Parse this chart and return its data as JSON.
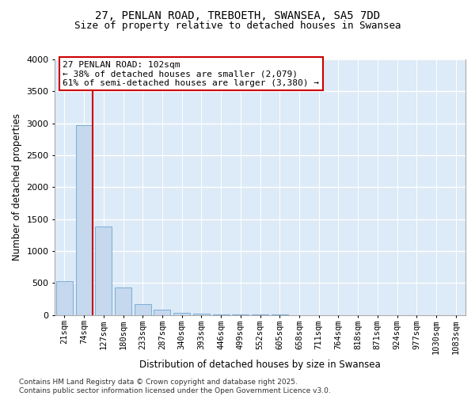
{
  "title_line1": "27, PENLAN ROAD, TREBOETH, SWANSEA, SA5 7DD",
  "title_line2": "Size of property relative to detached houses in Swansea",
  "xlabel": "Distribution of detached houses by size in Swansea",
  "ylabel": "Number of detached properties",
  "categories": [
    "21sqm",
    "74sqm",
    "127sqm",
    "180sqm",
    "233sqm",
    "287sqm",
    "340sqm",
    "393sqm",
    "446sqm",
    "499sqm",
    "552sqm",
    "605sqm",
    "658sqm",
    "711sqm",
    "764sqm",
    "818sqm",
    "871sqm",
    "924sqm",
    "977sqm",
    "1030sqm",
    "1083sqm"
  ],
  "bar_values": [
    530,
    2970,
    1380,
    430,
    170,
    80,
    30,
    20,
    5,
    5,
    2,
    1,
    0,
    0,
    0,
    0,
    0,
    0,
    0,
    0,
    0
  ],
  "bar_color": "#c5d8ee",
  "bar_edgecolor": "#7aaed4",
  "background_color": "#ddeaf7",
  "grid_color": "#ffffff",
  "vline_color": "#cc0000",
  "vline_x": 1.45,
  "annotation_text": "27 PENLAN ROAD: 102sqm\n← 38% of detached houses are smaller (2,079)\n61% of semi-detached houses are larger (3,380) →",
  "ann_box_color": "#cc0000",
  "ylim": [
    0,
    4000
  ],
  "yticks": [
    0,
    500,
    1000,
    1500,
    2000,
    2500,
    3000,
    3500,
    4000
  ],
  "footer_text": "Contains HM Land Registry data © Crown copyright and database right 2025.\nContains public sector information licensed under the Open Government Licence v3.0."
}
